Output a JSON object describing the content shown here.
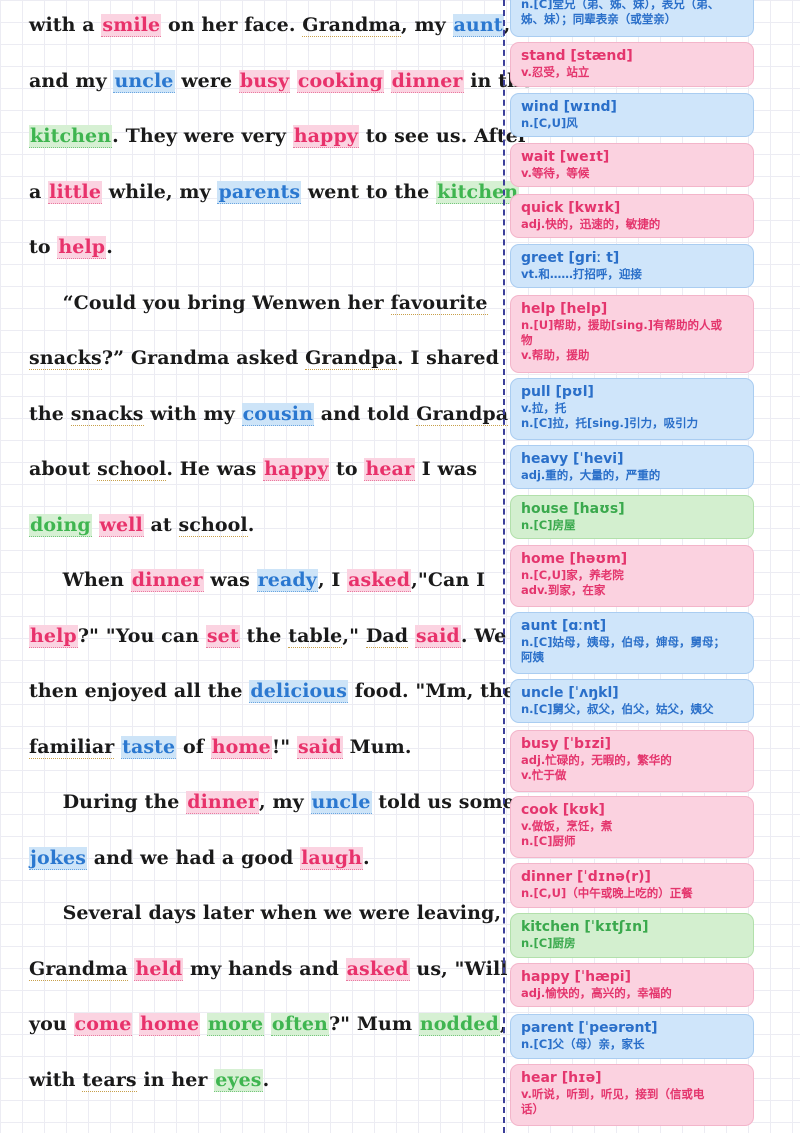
{
  "reading": {
    "lines": [
      [
        {
          "t": "with a "
        },
        {
          "t": "smile",
          "h": "red"
        },
        {
          "t": " on her face. "
        },
        {
          "t": "Grandma",
          "u": "dot"
        },
        {
          "t": ", my "
        },
        {
          "t": "aunt",
          "h": "blue"
        },
        {
          "t": ","
        }
      ],
      [
        {
          "t": "and my "
        },
        {
          "t": "uncle",
          "h": "blue"
        },
        {
          "t": " were "
        },
        {
          "t": "busy",
          "h": "red"
        },
        {
          "t": " "
        },
        {
          "t": "cooking",
          "h": "red"
        },
        {
          "t": " "
        },
        {
          "t": "dinner",
          "h": "red"
        },
        {
          "t": " in the"
        }
      ],
      [
        {
          "t": "kitchen",
          "h": "green"
        },
        {
          "t": ". They were very "
        },
        {
          "t": "happy",
          "h": "red"
        },
        {
          "t": " to see us. After"
        }
      ],
      [
        {
          "t": " a "
        },
        {
          "t": "little",
          "h": "red"
        },
        {
          "t": " while, my "
        },
        {
          "t": "parents",
          "h": "blue"
        },
        {
          "t": " went to the "
        },
        {
          "t": "kitchen",
          "h": "green"
        }
      ],
      [
        {
          "t": "to "
        },
        {
          "t": "help",
          "h": "red"
        },
        {
          "t": "."
        }
      ],
      [
        {
          "t": "    “Could you bring Wenwen her "
        },
        {
          "t": "favourite",
          "u": "dot"
        }
      ],
      [
        {
          "t": "snacks",
          "u": "dot"
        },
        {
          "t": "?” Grandma asked "
        },
        {
          "t": "Grandpa",
          "u": "dot"
        },
        {
          "t": ". I shared"
        }
      ],
      [
        {
          "t": "the "
        },
        {
          "t": "snacks",
          "u": "dot"
        },
        {
          "t": " with my "
        },
        {
          "t": "cousin",
          "h": "blue"
        },
        {
          "t": " and told "
        },
        {
          "t": "Grandpa",
          "u": "dot"
        }
      ],
      [
        {
          "t": "about "
        },
        {
          "t": "school",
          "u": "dot"
        },
        {
          "t": ". He was "
        },
        {
          "t": "happy",
          "h": "red"
        },
        {
          "t": " to "
        },
        {
          "t": "hear",
          "h": "red"
        },
        {
          "t": " I was"
        }
      ],
      [
        {
          "t": "doing",
          "h": "green"
        },
        {
          "t": " "
        },
        {
          "t": "well",
          "h": "red"
        },
        {
          "t": " at "
        },
        {
          "t": "school",
          "u": "dot"
        },
        {
          "t": "."
        }
      ],
      [
        {
          "t": "    When "
        },
        {
          "t": "dinner",
          "h": "red"
        },
        {
          "t": " was "
        },
        {
          "t": "ready",
          "h": "blue"
        },
        {
          "t": ", I "
        },
        {
          "t": "asked",
          "h": "red"
        },
        {
          "t": ",\"Can I"
        }
      ],
      [
        {
          "t": "help",
          "h": "red"
        },
        {
          "t": "?\" \"You can "
        },
        {
          "t": "set",
          "h": "red"
        },
        {
          "t": " the "
        },
        {
          "t": "table",
          "u": "dot"
        },
        {
          "t": ",\" "
        },
        {
          "t": "Dad",
          "u": "dot"
        },
        {
          "t": " "
        },
        {
          "t": "said",
          "h": "red"
        },
        {
          "t": ". We"
        }
      ],
      [
        {
          "t": "then enjoyed all the "
        },
        {
          "t": "delicious",
          "h": "blue"
        },
        {
          "t": " food. \"Mm, the"
        }
      ],
      [
        {
          "t": "familiar",
          "u": "dot"
        },
        {
          "t": " "
        },
        {
          "t": "taste",
          "h": "blue"
        },
        {
          "t": " of "
        },
        {
          "t": "home",
          "h": "red"
        },
        {
          "t": "!\" "
        },
        {
          "t": "said",
          "h": "red"
        },
        {
          "t": " Mum."
        }
      ],
      [
        {
          "t": "    During the "
        },
        {
          "t": "dinner",
          "h": "red"
        },
        {
          "t": ", my "
        },
        {
          "t": "uncle",
          "h": "blue"
        },
        {
          "t": " told us some"
        }
      ],
      [
        {
          "t": "jokes",
          "h": "blue"
        },
        {
          "t": " and we had a good "
        },
        {
          "t": "laugh",
          "h": "red"
        },
        {
          "t": "."
        }
      ],
      [
        {
          "t": "    Several days later when we were leaving,"
        }
      ],
      [
        {
          "t": "Grandma",
          "u": "dot"
        },
        {
          "t": " "
        },
        {
          "t": "held",
          "h": "red"
        },
        {
          "t": " my hands and "
        },
        {
          "t": "asked",
          "h": "red"
        },
        {
          "t": " us, \"Will"
        }
      ],
      [
        {
          "t": "you "
        },
        {
          "t": "come",
          "h": "red"
        },
        {
          "t": " "
        },
        {
          "t": "home",
          "h": "red"
        },
        {
          "t": " "
        },
        {
          "t": "more",
          "h": "green"
        },
        {
          "t": " "
        },
        {
          "t": "often",
          "h": "green"
        },
        {
          "t": "?\" Mum "
        },
        {
          "t": "nodded",
          "h": "green"
        },
        {
          "t": ","
        }
      ],
      [
        {
          "t": "with "
        },
        {
          "t": "tears",
          "u": "dot"
        },
        {
          "t": " in her "
        },
        {
          "t": "eyes",
          "h": "green"
        },
        {
          "t": "."
        }
      ]
    ]
  },
  "vocab": [
    {
      "head": "",
      "def": "n.[C]堂兄（弟、姊、妹），表兄（弟、\n姊、妹）；同辈表亲（或堂亲）",
      "color": "blue"
    },
    {
      "head": "stand [stænd]",
      "def": "v.忍受，站立",
      "color": "red"
    },
    {
      "head": "wind [wɪnd]",
      "def": "n.[C,U]风",
      "color": "blue"
    },
    {
      "head": "wait [weɪt]",
      "def": "v.等待，等候",
      "color": "red"
    },
    {
      "head": "quick [kwɪk]",
      "def": "adj.快的，迅速的，敏捷的",
      "color": "red"
    },
    {
      "head": "greet [griː t]",
      "def": "vt.和……打招呼，迎接",
      "color": "blue"
    },
    {
      "head": "help [help]",
      "def": "n.[U]帮助，援助[sing.]有帮助的人或\n物\nv.帮助，援助",
      "color": "red"
    },
    {
      "head": "pull [pʊl]",
      "def": "v.拉，托\nn.[C]拉，托[sing.]引力，吸引力",
      "color": "blue"
    },
    {
      "head": "heavy [ˈhevi]",
      "def": "adj.重的，大量的，严重的",
      "color": "blue"
    },
    {
      "head": "house [haʊs]",
      "def": "n.[C]房屋",
      "color": "green"
    },
    {
      "head": "home [həʊm]",
      "def": "n.[C,U]家，养老院\nadv.到家，在家",
      "color": "red"
    },
    {
      "head": "aunt [ɑːnt]",
      "def": "n.[C]姑母，姨母，伯母，婶母，舅母；\n阿姨",
      "color": "blue"
    },
    {
      "head": "uncle [ˈʌŋkl]",
      "def": "n.[C]舅父，叔父，伯父，姑父，姨父",
      "color": "blue"
    },
    {
      "head": "busy [ˈbɪzi]",
      "def": "adj.忙碌的，无暇的，繁华的\nv.忙于做",
      "color": "red"
    },
    {
      "head": "cook [kʊk]",
      "def": "v.做饭，烹饪，煮\nn.[C]厨师",
      "color": "red"
    },
    {
      "head": "dinner [ˈdɪnə(r)]",
      "def": "n.[C,U]（中午或晚上吃的）正餐",
      "color": "red"
    },
    {
      "head": "kitchen [ˈkɪtʃɪn]",
      "def": "n.[C]厨房",
      "color": "green"
    },
    {
      "head": "happy [ˈhæpi]",
      "def": "adj.愉快的，高兴的，幸福的",
      "color": "red"
    },
    {
      "head": "parent [ˈpeərənt]",
      "def": "n.[C]父（母）亲，家长",
      "color": "blue"
    },
    {
      "head": "hear [hɪə]",
      "def": "v.听说，听到，听见，接到（信或电\n话）",
      "color": "red"
    }
  ]
}
